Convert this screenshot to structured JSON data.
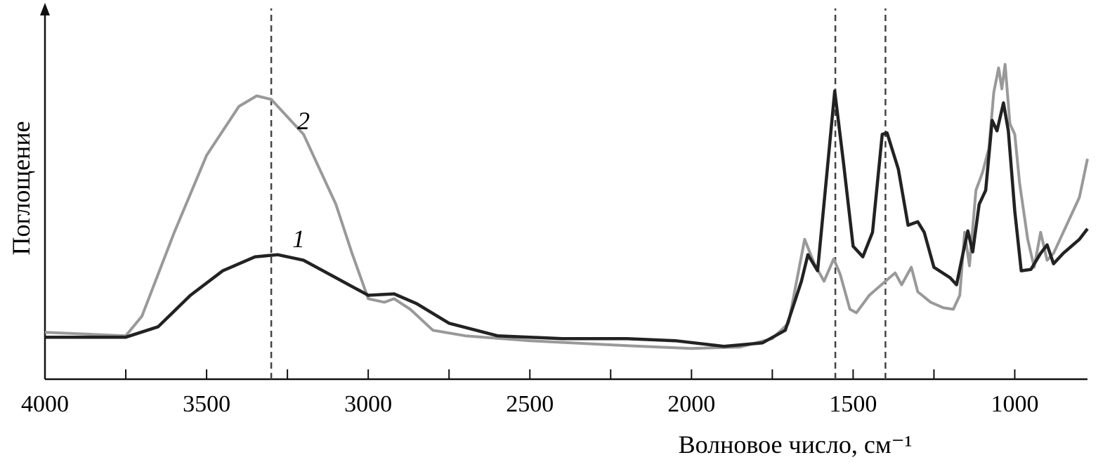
{
  "chart_data": {
    "type": "line",
    "x_label": "Волновое число, см⁻¹",
    "y_label": "Поглощение",
    "annotations": [
      "1",
      "2"
    ],
    "xlim": [
      4000,
      775
    ],
    "ylim": [
      0,
      106
    ],
    "xticks": [
      4000,
      3500,
      3000,
      2500,
      2000,
      1500,
      1000
    ],
    "xminorticks": [
      3750,
      3250,
      2750,
      2250,
      1750,
      1250
    ],
    "vlines": [
      3300,
      1555,
      1400
    ],
    "series": [
      {
        "name": "1",
        "color": "#222222",
        "x": [
          4000,
          3750,
          3650,
          3550,
          3450,
          3350,
          3280,
          3200,
          3100,
          3000,
          2920,
          2850,
          2750,
          2600,
          2400,
          2200,
          2050,
          1900,
          1780,
          1710,
          1660,
          1640,
          1610,
          1580,
          1557,
          1530,
          1500,
          1470,
          1440,
          1410,
          1395,
          1360,
          1330,
          1300,
          1280,
          1250,
          1200,
          1180,
          1160,
          1145,
          1130,
          1110,
          1090,
          1070,
          1055,
          1035,
          1020,
          1000,
          980,
          950,
          920,
          900,
          880,
          850,
          800,
          775
        ],
        "values": [
          12,
          12,
          15,
          24,
          31,
          35,
          35.6,
          34,
          29,
          24,
          24.4,
          21.6,
          16,
          12.4,
          11.6,
          11.6,
          11,
          9.4,
          10.4,
          14,
          28,
          35.6,
          31,
          60,
          82.4,
          62,
          38,
          35,
          42,
          70,
          70.4,
          60,
          44,
          45,
          42,
          32,
          29,
          27,
          36,
          42.4,
          36.4,
          50,
          54,
          74,
          71,
          79,
          71,
          48,
          31,
          31.4,
          36,
          38.4,
          33,
          36,
          40,
          43
        ]
      },
      {
        "name": "2",
        "color": "#999999",
        "x": [
          4000,
          3750,
          3700,
          3600,
          3500,
          3400,
          3345,
          3300,
          3200,
          3100,
          3050,
          3000,
          2950,
          2920,
          2870,
          2800,
          2700,
          2500,
          2200,
          2000,
          1850,
          1750,
          1700,
          1650,
          1620,
          1590,
          1560,
          1540,
          1510,
          1490,
          1450,
          1400,
          1370,
          1350,
          1320,
          1300,
          1260,
          1220,
          1190,
          1170,
          1155,
          1140,
          1120,
          1100,
          1080,
          1065,
          1050,
          1040,
          1030,
          1015,
          1000,
          985,
          960,
          940,
          920,
          900,
          880,
          850,
          800,
          775
        ],
        "values": [
          13.4,
          12.4,
          18,
          42,
          64,
          78,
          81,
          80,
          70,
          50,
          36,
          23,
          22,
          23,
          20,
          14,
          12.4,
          11,
          9.6,
          8.8,
          9.2,
          11.6,
          16,
          40,
          33,
          28,
          34.4,
          30,
          20,
          19,
          24,
          28,
          30.4,
          27,
          32,
          25,
          22,
          20.4,
          20,
          24,
          42,
          32.4,
          54,
          59,
          66,
          82,
          89,
          83,
          90,
          73,
          70,
          56,
          40,
          32,
          42,
          34,
          36,
          42,
          52,
          63
        ]
      }
    ]
  }
}
